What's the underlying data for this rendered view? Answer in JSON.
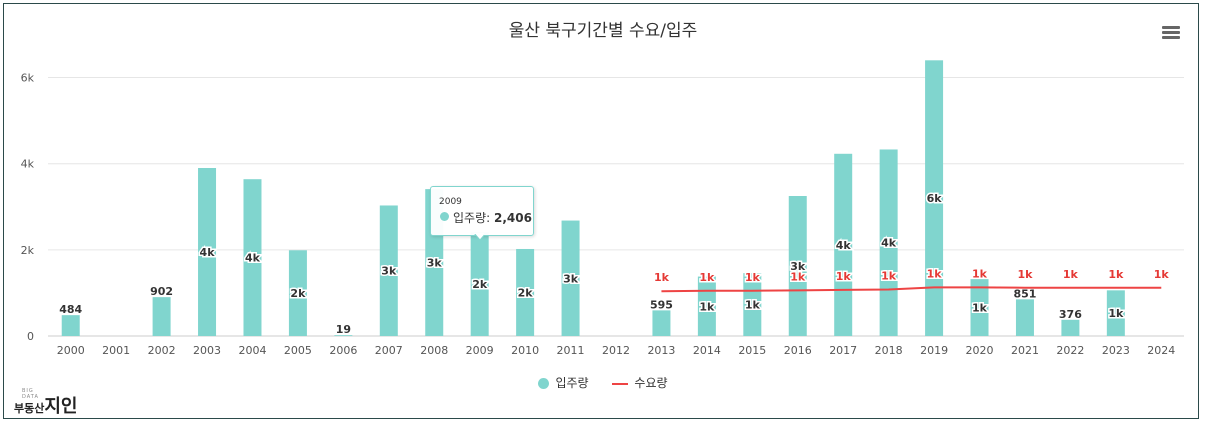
{
  "title": "울산 북구기간별 수요/입주",
  "menu_icon": "hamburger-menu-icon",
  "colors": {
    "bar": "#80d5ce",
    "line": "#ee4444",
    "grid": "#e6e6e6",
    "bar_label": "#333333",
    "line_label": "#e53935"
  },
  "logo": {
    "small": "BIG DATA",
    "main": "부동산",
    "big": "지인"
  },
  "legend": [
    {
      "name": "입주량"
    },
    {
      "name": "수요량"
    }
  ],
  "tooltip": {
    "x": "2009",
    "series": "입주량",
    "value": "2,406"
  },
  "chart_data": {
    "type": "bar",
    "ylim": [
      0,
      6500
    ],
    "yticks": [
      {
        "v": 0,
        "label": "0"
      },
      {
        "v": 2000,
        "label": "2k"
      },
      {
        "v": 4000,
        "label": "4k"
      },
      {
        "v": 6000,
        "label": "6k"
      }
    ],
    "categories": [
      "2000",
      "2001",
      "2002",
      "2003",
      "2004",
      "2005",
      "2006",
      "2007",
      "2008",
      "2009",
      "2010",
      "2011",
      "2012",
      "2013",
      "2014",
      "2015",
      "2016",
      "2017",
      "2018",
      "2019",
      "2020",
      "2021",
      "2022",
      "2023",
      "2024"
    ],
    "series": [
      {
        "name": "입주량",
        "type": "bar",
        "values": [
          484,
          0,
          902,
          3900,
          3640,
          1990,
          19,
          3030,
          3410,
          2406,
          2020,
          2680,
          0,
          595,
          1380,
          1460,
          3250,
          4230,
          4330,
          6400,
          1320,
          851,
          376,
          1060,
          0
        ],
        "labels": [
          "484",
          "",
          "902",
          "4k",
          "4k",
          "2k",
          "19",
          "3k",
          "3k",
          "2k",
          "2k",
          "3k",
          "",
          "595",
          "1k",
          "1k",
          "3k",
          "4k",
          "4k",
          "6k",
          "1k",
          "851",
          "376",
          "1k",
          ""
        ]
      },
      {
        "name": "수요량",
        "type": "line",
        "values": [
          null,
          null,
          null,
          null,
          null,
          null,
          null,
          null,
          null,
          null,
          null,
          null,
          null,
          1040,
          1050,
          1050,
          1060,
          1070,
          1080,
          1130,
          1130,
          1120,
          1120,
          1120,
          1120
        ],
        "labels": [
          "",
          "",
          "",
          "",
          "",
          "",
          "",
          "",
          "",
          "",
          "",
          "",
          "",
          "1k",
          "1k",
          "1k",
          "1k",
          "1k",
          "1k",
          "1k",
          "1k",
          "1k",
          "1k",
          "1k",
          "1k"
        ]
      }
    ]
  }
}
